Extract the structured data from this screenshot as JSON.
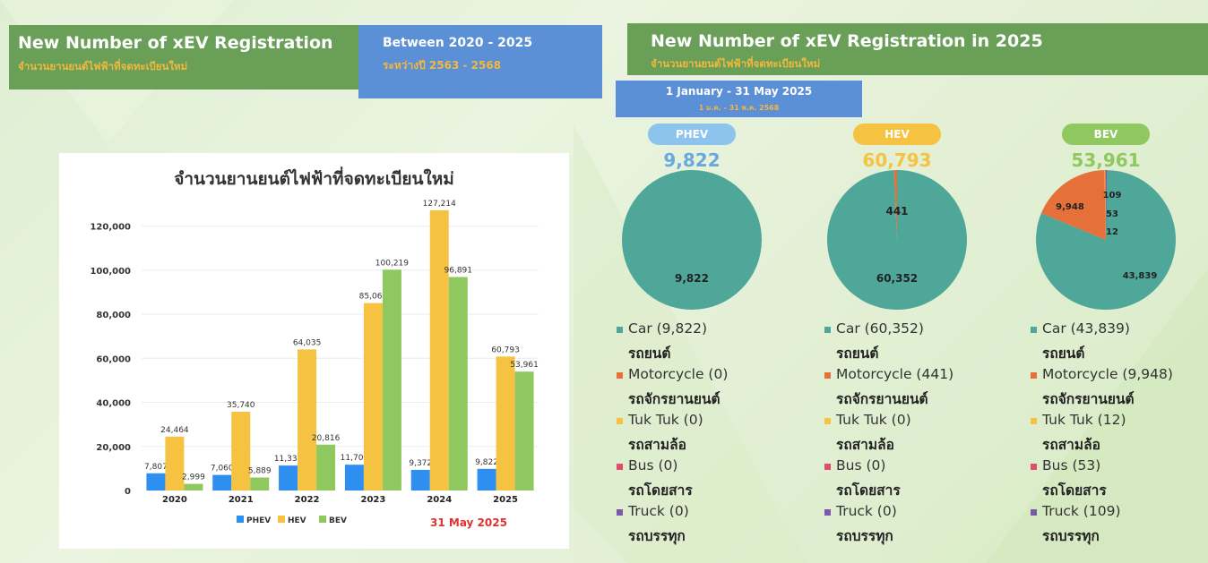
{
  "header_left": {
    "title": "New Number of xEV Registration",
    "subtitle": "จำนวนยานยนต์ไฟฟ้าที่จดทะเบียนใหม่",
    "range_title": "Between 2020 - 2025",
    "range_subtitle": "ระหว่างปี 2563 - 2568"
  },
  "header_right": {
    "title": "New Number of xEV Registration in 2025",
    "subtitle": "จำนวนยานยนต์ไฟฟ้าที่จดทะเบียนใหม่",
    "period_title": "1 January - 31 May 2025",
    "period_subtitle": "1 ม.ค. - 31 พ.ค. 2568"
  },
  "chart_data": [
    {
      "type": "bar",
      "title": "จำนวนยานยนต์ไฟฟ้าที่จดทะเบียนใหม่",
      "categories": [
        "2020",
        "2021",
        "2022",
        "2023",
        "2024",
        "2025"
      ],
      "series": [
        {
          "name": "PHEV",
          "color": "#2f8ff0",
          "values": [
            7807,
            7060,
            11331,
            11703,
            9372,
            9822
          ],
          "labels": [
            "7,807",
            "7,060",
            "11,331",
            "11,703",
            "9,372",
            "9,822"
          ]
        },
        {
          "name": "HEV",
          "color": "#f5c242",
          "values": [
            24464,
            35740,
            64035,
            85069,
            127214,
            60793
          ],
          "labels": [
            "24,464",
            "35,740",
            "64,035",
            "85,069",
            "127,214",
            "60,793"
          ]
        },
        {
          "name": "BEV",
          "color": "#8fc85f",
          "values": [
            2999,
            5889,
            20816,
            100219,
            96891,
            53961
          ],
          "labels": [
            "2,999",
            "5,889",
            "20,816",
            "100,219",
            "96,891",
            "53,961"
          ]
        }
      ],
      "yticks": [
        0,
        20000,
        40000,
        60000,
        80000,
        100000,
        120000
      ],
      "ytick_labels": [
        "0",
        "20,000",
        "40,000",
        "60,000",
        "80,000",
        "100,000",
        "120,000"
      ],
      "ylim": [
        0,
        130000
      ],
      "grid": true,
      "legend_position": "bottom",
      "note": "31 May 2025"
    },
    {
      "type": "pie",
      "title": "PHEV",
      "total": "9,822",
      "color": "#8cc4ee",
      "total_color": "#6aa8e0",
      "slices": [
        {
          "label": "Car",
          "value": 9822,
          "display": "9,822",
          "color": "#4fa79a"
        }
      ]
    },
    {
      "type": "pie",
      "title": "HEV",
      "total": "60,793",
      "color": "#f5c242",
      "total_color": "#f5c242",
      "slices": [
        {
          "label": "Car",
          "value": 60352,
          "display": "60,352",
          "color": "#4fa79a"
        },
        {
          "label": "Motorcycle",
          "value": 441,
          "display": "441",
          "color": "#e5703a"
        }
      ]
    },
    {
      "type": "pie",
      "title": "BEV",
      "total": "53,961",
      "color": "#8fc85f",
      "total_color": "#8fc85f",
      "slices": [
        {
          "label": "Car",
          "value": 43839,
          "display": "43,839",
          "color": "#4fa79a"
        },
        {
          "label": "Motorcycle",
          "value": 9948,
          "display": "9,948",
          "color": "#e5703a"
        },
        {
          "label": "Tuk Tuk",
          "value": 12,
          "display": "12",
          "color": "#f5c242"
        },
        {
          "label": "Bus",
          "value": 53,
          "display": "53",
          "color": "#e34b6a"
        },
        {
          "label": "Truck",
          "value": 109,
          "display": "109",
          "color": "#7a5aa8"
        }
      ]
    }
  ],
  "legends": [
    [
      {
        "en": "Car (9,822)",
        "th": "รถยนต์",
        "color": "#4fa79a"
      },
      {
        "en": "Motorcycle (0)",
        "th": "รถจักรยานยนต์",
        "color": "#e5703a"
      },
      {
        "en": "Tuk Tuk (0)",
        "th": "รถสามล้อ",
        "color": "#f5c242"
      },
      {
        "en": "Bus (0)",
        "th": "รถโดยสาร",
        "color": "#e34b6a"
      },
      {
        "en": "Truck (0)",
        "th": "รถบรรทุก",
        "color": "#7a5aa8"
      }
    ],
    [
      {
        "en": "Car (60,352)",
        "th": "รถยนต์",
        "color": "#4fa79a"
      },
      {
        "en": "Motorcycle (441)",
        "th": "รถจักรยานยนต์",
        "color": "#e5703a"
      },
      {
        "en": "Tuk Tuk (0)",
        "th": "รถสามล้อ",
        "color": "#f5c242"
      },
      {
        "en": "Bus (0)",
        "th": "รถโดยสาร",
        "color": "#e34b6a"
      },
      {
        "en": "Truck (0)",
        "th": "รถบรรทุก",
        "color": "#7a5aa8"
      }
    ],
    [
      {
        "en": "Car (43,839)",
        "th": "รถยนต์",
        "color": "#4fa79a"
      },
      {
        "en": "Motorcycle (9,948)",
        "th": "รถจักรยานยนต์",
        "color": "#e5703a"
      },
      {
        "en": "Tuk Tuk (12)",
        "th": "รถสามล้อ",
        "color": "#f5c242"
      },
      {
        "en": "Bus (53)",
        "th": "รถโดยสาร",
        "color": "#e34b6a"
      },
      {
        "en": "Truck (109)",
        "th": "รถบรรทุก",
        "color": "#7a5aa8"
      }
    ]
  ]
}
